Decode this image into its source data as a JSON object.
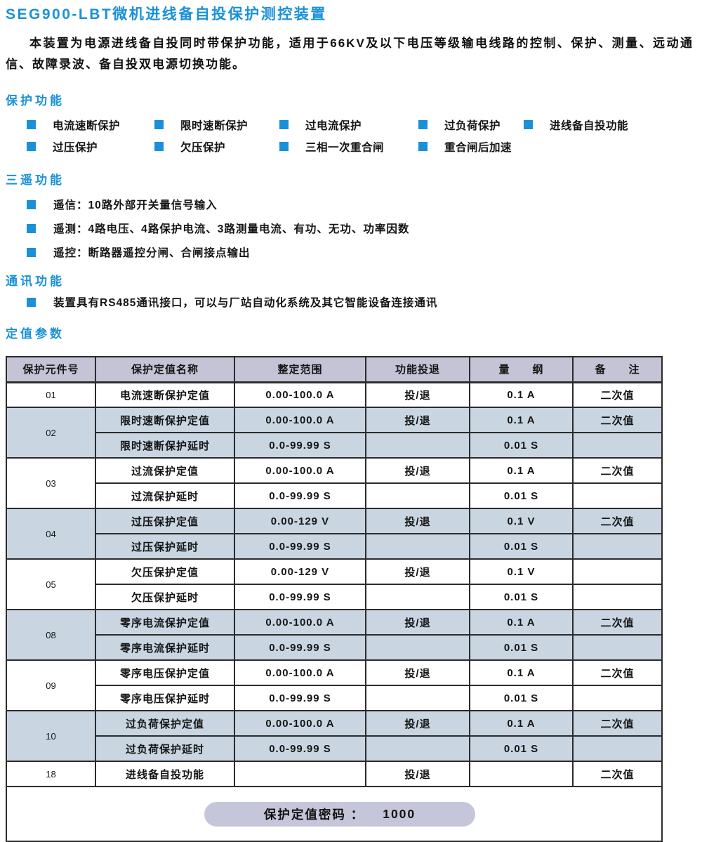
{
  "page": {
    "title": "SEG900-LBT微机进线备自投保护测控装置",
    "intro": "本装置为电源进线备自投同时带保护功能，适用于66KV及以下电压等级输电线路的控制、保护、测量、远动通信、故障录波、备自投双电源切换功能。"
  },
  "sections": {
    "protection": {
      "heading": "保护功能",
      "rows": [
        [
          "电流速断保护",
          "限时速断保护",
          "过电流保护",
          "过负荷保护",
          "进线备自投功能"
        ],
        [
          "过压保护",
          "欠压保护",
          "三相一次重合闸",
          "重合闸后加速"
        ]
      ]
    },
    "telemetry": {
      "heading": "三遥功能",
      "items": [
        "遥信：10路外部开关量信号输入",
        "遥测：4路电压、4路保护电流、3路测量电流、有功、无功、功率因数",
        "遥控：断路器遥控分闸、合闸接点输出"
      ]
    },
    "comm": {
      "heading": "通讯功能",
      "items": [
        "装置具有RS485通讯接口，可以与厂站自动化系统及其它智能设备连接通讯"
      ]
    },
    "settings": {
      "heading": "定值参数"
    }
  },
  "table": {
    "headers": [
      "保护元件号",
      "保护定值名称",
      "整定范围",
      "功能投退",
      "量　　纲",
      "备　　注"
    ],
    "groups": [
      {
        "id": "01",
        "shaded": false,
        "rows": [
          {
            "name": "电流速断保护定值",
            "range": "0.00-100.0 A",
            "toggle": "投/退",
            "unit": "0.1 A",
            "note": "二次值"
          }
        ]
      },
      {
        "id": "02",
        "shaded": true,
        "rows": [
          {
            "name": "限时速断保护定值",
            "range": "0.00-100.0 A",
            "toggle": "投/退",
            "unit": "0.1 A",
            "note": "二次值"
          },
          {
            "name": "限时速断保护延时",
            "range": "0.0-99.99 S",
            "toggle": "",
            "unit": "0.01 S",
            "note": ""
          }
        ]
      },
      {
        "id": "03",
        "shaded": false,
        "rows": [
          {
            "name": "过流保护定值",
            "range": "0.00-100.0 A",
            "toggle": "投/退",
            "unit": "0.1 A",
            "note": "二次值"
          },
          {
            "name": "过流保护延时",
            "range": "0.0-99.99 S",
            "toggle": "",
            "unit": "0.01 S",
            "note": ""
          }
        ]
      },
      {
        "id": "04",
        "shaded": true,
        "rows": [
          {
            "name": "过压保护定值",
            "range": "0.00-129 V",
            "toggle": "投/退",
            "unit": "0.1 V",
            "note": "二次值"
          },
          {
            "name": "过压保护延时",
            "range": "0.0-99.99 S",
            "toggle": "",
            "unit": "0.01 S",
            "note": ""
          }
        ]
      },
      {
        "id": "05",
        "shaded": false,
        "rows": [
          {
            "name": "欠压保护定值",
            "range": "0.00-129 V",
            "toggle": "投/退",
            "unit": "0.1 V",
            "note": ""
          },
          {
            "name": "欠压保护延时",
            "range": "0.0-99.99 S",
            "toggle": "",
            "unit": "0.01 S",
            "note": ""
          }
        ]
      },
      {
        "id": "08",
        "shaded": true,
        "rows": [
          {
            "name": "零序电流保护定值",
            "range": "0.00-100.0 A",
            "toggle": "投/退",
            "unit": "0.1 A",
            "note": "二次值"
          },
          {
            "name": "零序电流保护延时",
            "range": "0.0-99.99 S",
            "toggle": "",
            "unit": "0.01 S",
            "note": ""
          }
        ]
      },
      {
        "id": "09",
        "shaded": false,
        "rows": [
          {
            "name": "零序电压保护定值",
            "range": "0.00-100.0 A",
            "toggle": "投/退",
            "unit": "0.1 A",
            "note": "二次值"
          },
          {
            "name": "零序电压保护延时",
            "range": "0.0-99.99 S",
            "toggle": "",
            "unit": "0.01 S",
            "note": ""
          }
        ]
      },
      {
        "id": "10",
        "shaded": true,
        "rows": [
          {
            "name": "过负荷保护定值",
            "range": "0.00-100.0 A",
            "toggle": "投/退",
            "unit": "0.1 A",
            "note": "二次值"
          },
          {
            "name": "过负荷保护延时",
            "range": "0.0-99.99 S",
            "toggle": "",
            "unit": "0.01 S",
            "note": ""
          }
        ]
      },
      {
        "id": "18",
        "shaded": false,
        "rows": [
          {
            "name": "进线备自投功能",
            "range": "",
            "toggle": "投/退",
            "unit": "",
            "note": "二次值"
          }
        ]
      }
    ],
    "footer": {
      "label": "保护定值密码 ：",
      "value": "1000"
    }
  },
  "colors": {
    "accent": "#1a91d7",
    "header_bg": "#c4c4d6",
    "shaded_row": "#c9d6e2",
    "pill_bg": "#c6c6da",
    "border": "#2b2b2b"
  }
}
